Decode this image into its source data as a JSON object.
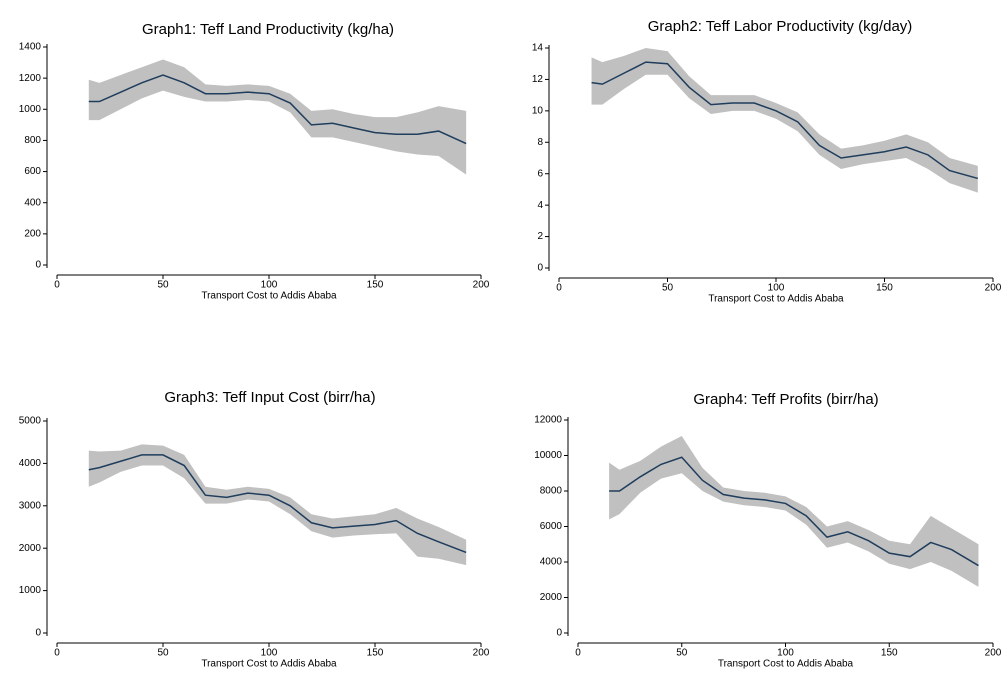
{
  "chart_data": [
    {
      "type": "line",
      "title": "Graph1: Teff Land Productivity (kg/ha)",
      "x_label": "Transport Cost to Addis Ababa",
      "x": [
        15,
        20,
        30,
        40,
        50,
        60,
        70,
        80,
        90,
        100,
        110,
        120,
        130,
        140,
        150,
        160,
        170,
        180,
        193
      ],
      "series": [
        {
          "color": "#1f3d5c",
          "band_color": "#c0c0c0",
          "values": [
            1050,
            1050,
            1110,
            1170,
            1220,
            1170,
            1100,
            1100,
            1110,
            1100,
            1040,
            900,
            910,
            880,
            850,
            840,
            840,
            860,
            780
          ],
          "lower": [
            930,
            930,
            1000,
            1070,
            1120,
            1080,
            1050,
            1050,
            1060,
            1050,
            980,
            820,
            820,
            790,
            760,
            730,
            710,
            700,
            580
          ],
          "upper": [
            1190,
            1170,
            1220,
            1270,
            1320,
            1270,
            1160,
            1150,
            1160,
            1150,
            1100,
            990,
            1000,
            970,
            950,
            950,
            980,
            1020,
            990
          ]
        }
      ],
      "xlim": [
        0,
        200
      ],
      "xticks": [
        0,
        50,
        100,
        150,
        200
      ],
      "ylim": [
        0,
        1400
      ],
      "yticks": [
        0,
        200,
        400,
        600,
        800,
        1000,
        1200,
        1400
      ],
      "grid": false
    },
    {
      "type": "line",
      "title": "Graph2: Teff Labor Productivity (kg/day)",
      "x_label": "Transport Cost to Addis Ababa",
      "x": [
        15,
        20,
        30,
        40,
        50,
        60,
        70,
        80,
        90,
        100,
        110,
        120,
        130,
        140,
        150,
        160,
        170,
        180,
        193
      ],
      "series": [
        {
          "color": "#1f3d5c",
          "band_color": "#c0c0c0",
          "values": [
            11.8,
            11.7,
            12.4,
            13.1,
            13.0,
            11.5,
            10.4,
            10.5,
            10.5,
            10.0,
            9.3,
            7.8,
            7.0,
            7.2,
            7.4,
            7.7,
            7.2,
            6.2,
            5.7
          ],
          "lower": [
            10.4,
            10.4,
            11.4,
            12.3,
            12.3,
            10.8,
            9.8,
            10.0,
            10.0,
            9.5,
            8.7,
            7.2,
            6.3,
            6.6,
            6.8,
            7.0,
            6.3,
            5.4,
            4.8
          ],
          "upper": [
            13.4,
            13.1,
            13.5,
            14.0,
            13.8,
            12.2,
            11.0,
            11.0,
            11.0,
            10.5,
            9.9,
            8.5,
            7.6,
            7.8,
            8.1,
            8.5,
            8.0,
            7.0,
            6.5
          ]
        }
      ],
      "xlim": [
        0,
        200
      ],
      "xticks": [
        0,
        50,
        100,
        150,
        200
      ],
      "ylim": [
        0,
        14
      ],
      "yticks": [
        0,
        2,
        4,
        6,
        8,
        10,
        12,
        14
      ],
      "grid": false
    },
    {
      "type": "line",
      "title": "Graph3: Teff Input Cost (birr/ha)",
      "x_label": "Transport Cost to Addis Ababa",
      "x": [
        15,
        20,
        30,
        40,
        50,
        60,
        70,
        80,
        90,
        100,
        110,
        120,
        130,
        140,
        150,
        160,
        170,
        180,
        193
      ],
      "series": [
        {
          "color": "#1f3d5c",
          "band_color": "#c0c0c0",
          "values": [
            3850,
            3900,
            4050,
            4200,
            4200,
            3950,
            3250,
            3200,
            3300,
            3250,
            3000,
            2600,
            2480,
            2520,
            2560,
            2650,
            2350,
            2150,
            1900
          ],
          "lower": [
            3450,
            3550,
            3800,
            3950,
            3950,
            3650,
            3050,
            3050,
            3150,
            3100,
            2800,
            2400,
            2250,
            2300,
            2330,
            2350,
            1800,
            1750,
            1600
          ],
          "upper": [
            4300,
            4280,
            4300,
            4450,
            4420,
            4200,
            3450,
            3380,
            3450,
            3400,
            3200,
            2800,
            2700,
            2750,
            2800,
            2950,
            2700,
            2500,
            2200
          ]
        }
      ],
      "xlim": [
        0,
        200
      ],
      "xticks": [
        0,
        50,
        100,
        150,
        200
      ],
      "ylim": [
        0,
        5000
      ],
      "yticks": [
        0,
        1000,
        2000,
        3000,
        4000,
        5000
      ],
      "grid": false
    },
    {
      "type": "line",
      "title": "Graph4: Teff Profits (birr/ha)",
      "x_label": "Transport Cost to Addis Ababa",
      "x": [
        15,
        20,
        30,
        40,
        50,
        60,
        70,
        80,
        90,
        100,
        110,
        120,
        130,
        140,
        150,
        160,
        170,
        180,
        193
      ],
      "series": [
        {
          "color": "#1f3d5c",
          "band_color": "#c0c0c0",
          "values": [
            8000,
            8000,
            8800,
            9500,
            9900,
            8600,
            7800,
            7600,
            7500,
            7300,
            6600,
            5400,
            5700,
            5200,
            4500,
            4300,
            5100,
            4700,
            3800
          ],
          "lower": [
            6400,
            6700,
            7900,
            8700,
            9000,
            8000,
            7400,
            7200,
            7100,
            6900,
            6100,
            4800,
            5100,
            4600,
            3900,
            3600,
            4000,
            3500,
            2600
          ],
          "upper": [
            9600,
            9200,
            9700,
            10500,
            11100,
            9300,
            8200,
            8000,
            7900,
            7700,
            7100,
            6000,
            6300,
            5800,
            5200,
            5000,
            6600,
            5900,
            5000
          ]
        }
      ],
      "xlim": [
        0,
        200
      ],
      "xticks": [
        0,
        50,
        100,
        150,
        200
      ],
      "ylim": [
        0,
        12000
      ],
      "yticks": [
        0,
        2000,
        4000,
        6000,
        8000,
        10000,
        12000
      ],
      "grid": false
    }
  ]
}
